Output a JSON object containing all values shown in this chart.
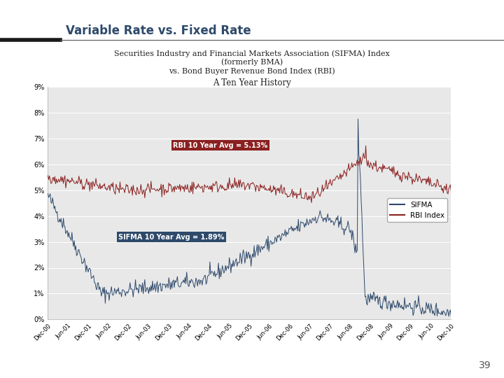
{
  "title": "Variable Rate vs. Fixed Rate",
  "subtitle1": "Securities Industry and Financial Markets Association (SIFMA) Index",
  "subtitle2": "(formerly BMA)",
  "subtitle3": "vs. Bond Buyer Revenue Bond Index (RBI)",
  "subtitle4": "A Ten Year History",
  "title_color": "#2e4a6b",
  "sifma_color": "#2e4a6b",
  "rbi_color": "#8b2020",
  "rbi_avg_label": "RBI 10 Year Avg = 5.13%",
  "rbi_avg_box_color": "#8b2020",
  "sifma_avg_label": "SIFMA 10 Year Avg = 1.89%",
  "sifma_avg_box_color": "#2e4a6b",
  "plot_bg_color": "#e8e8e8",
  "ylim": [
    0,
    9
  ],
  "yticks": [
    0,
    1,
    2,
    3,
    4,
    5,
    6,
    7,
    8,
    9
  ],
  "ytick_labels": [
    "0%",
    "1%",
    "2%",
    "3%",
    "4%",
    "5%",
    "6%",
    "7%",
    "8%",
    "9%"
  ],
  "xtick_labels": [
    "Dec-00",
    "Jun-01",
    "Dec-01",
    "Jun-02",
    "Dec-02",
    "Jun-03",
    "Dec-03",
    "Jun-04",
    "Dec-04",
    "Jun-05",
    "Dec-05",
    "Jun-06",
    "Dec-06",
    "Jun-07",
    "Dec-07",
    "Jun-08",
    "Dec-08",
    "Jun-09",
    "Dec-09",
    "Jun-10",
    "Dec-10"
  ],
  "legend_sifma": "SIFMA",
  "legend_rbi": "RBI Index",
  "page_number": "39"
}
